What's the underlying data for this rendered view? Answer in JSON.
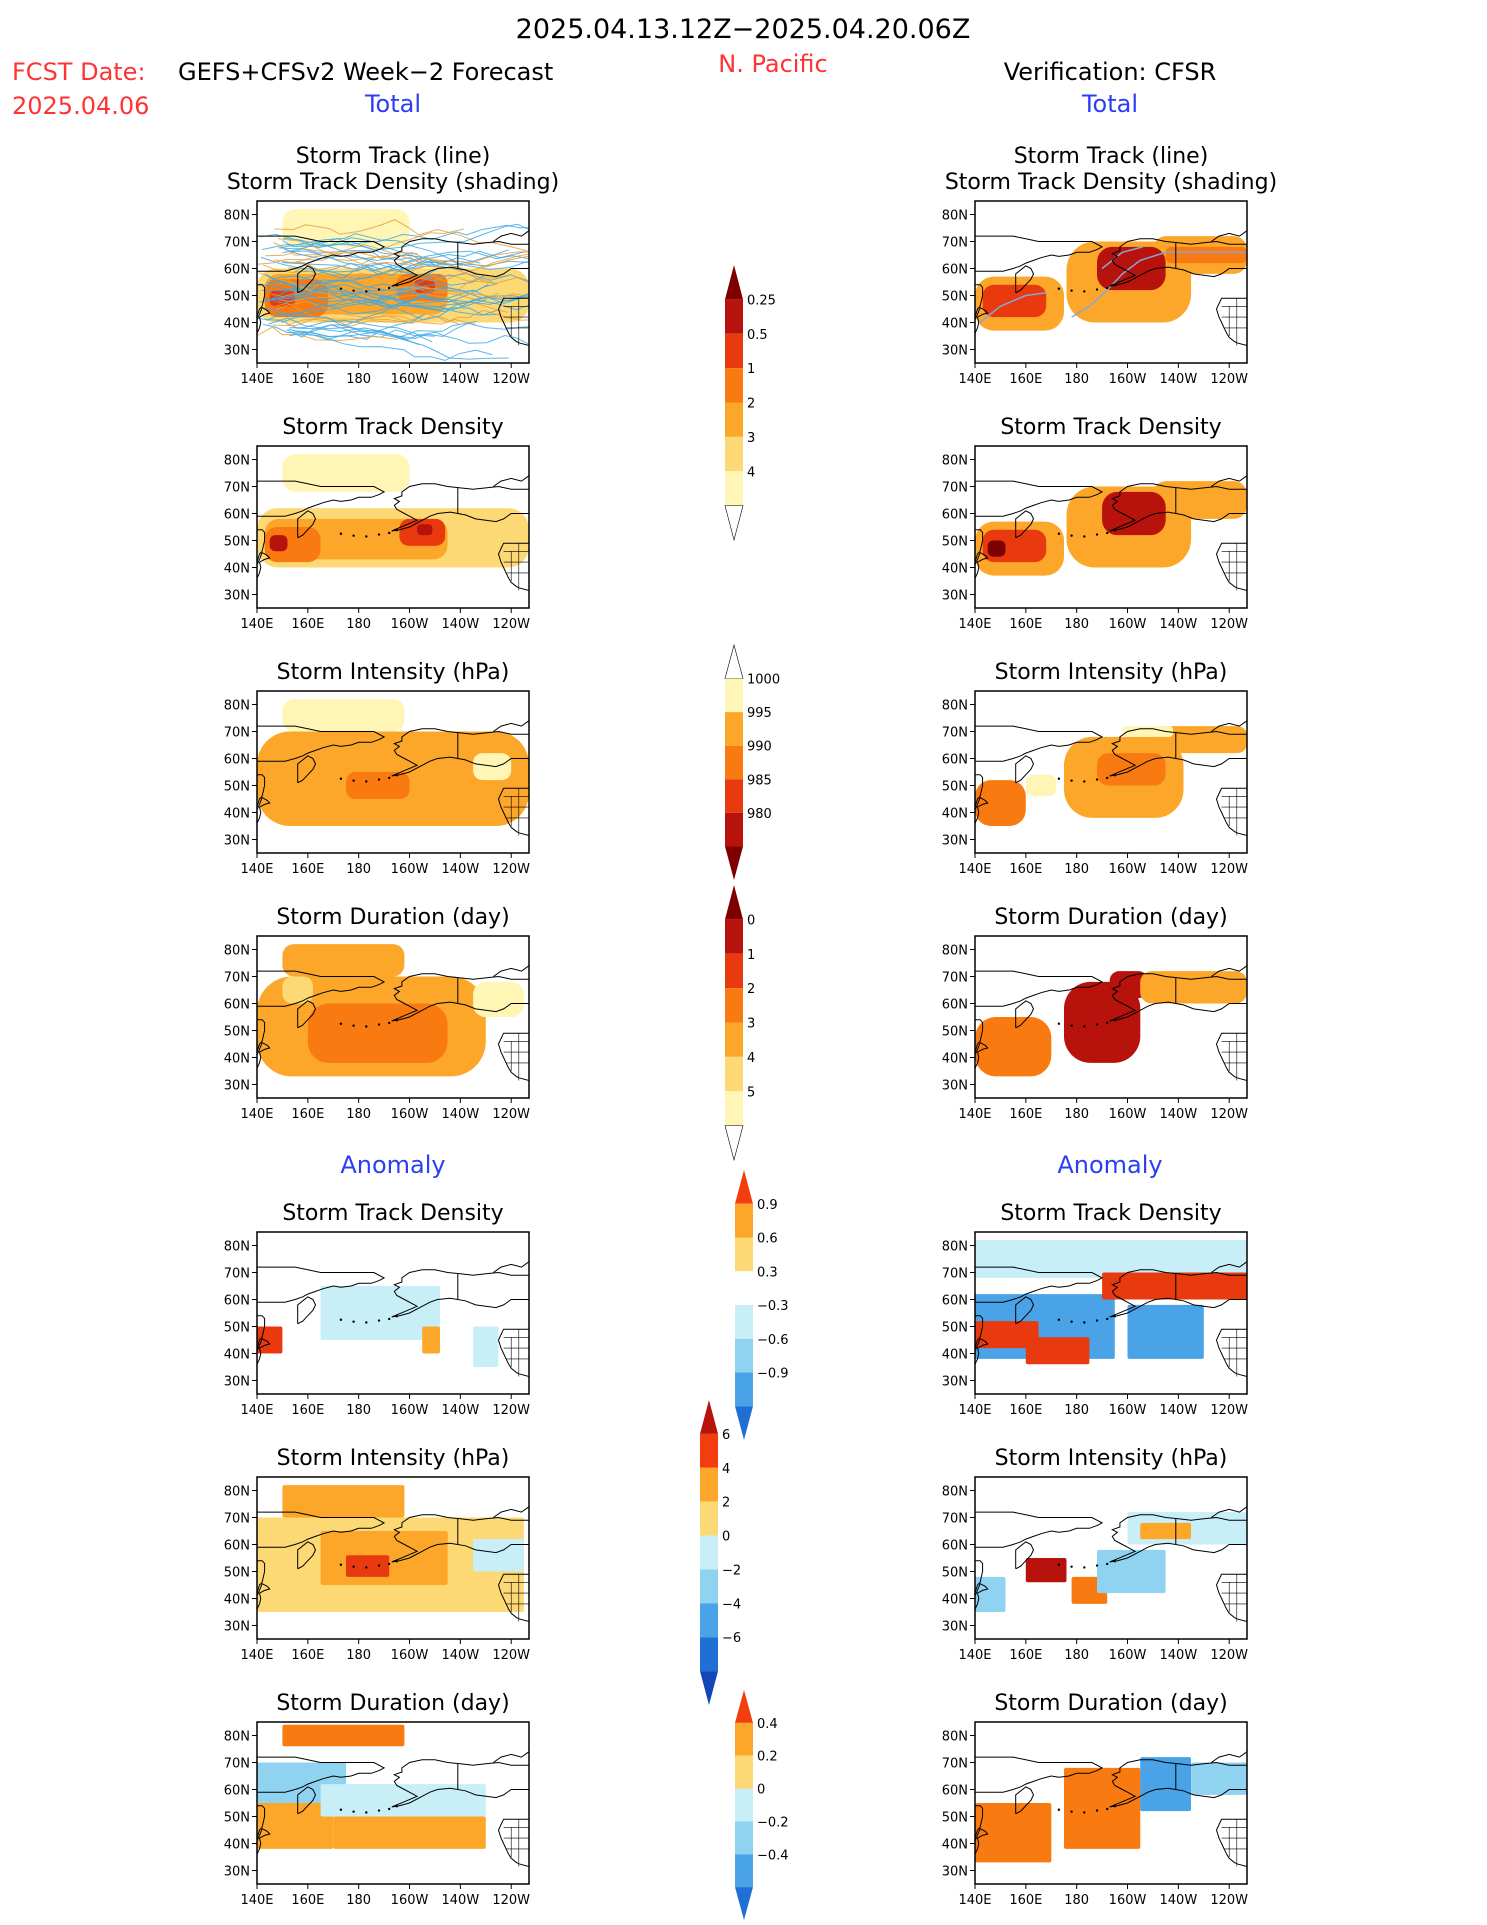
{
  "header": {
    "date_range": "2025.04.13.12Z−2025.04.20.06Z",
    "fcst_label": "FCST Date:",
    "fcst_date": "2025.04.06",
    "model": "GEFS+CFSv2 Week−2 Forecast",
    "region": "N. Pacific",
    "verification": "Verification: CFSR",
    "total_label": "Total",
    "anomaly_label": "Anomaly"
  },
  "axes": {
    "lon_ticks": [
      "140E",
      "160E",
      "180",
      "160W",
      "140W",
      "120W"
    ],
    "lat_ticks": [
      "80N",
      "70N",
      "60N",
      "50N",
      "40N",
      "30N"
    ],
    "lon_range": [
      140,
      247
    ],
    "lat_range": [
      25,
      85
    ]
  },
  "colors": {
    "warm": [
      "#fff5b5",
      "#fdd975",
      "#fca72a",
      "#f97a11",
      "#e83a0e",
      "#b7120b",
      "#7f0000"
    ],
    "cool": [
      "#c8eef8",
      "#8fd3f0",
      "#4aa3e6",
      "#1f6fd4",
      "#1446b8"
    ],
    "track_line": "#3ea9e6",
    "track_line_gold": "#e6a13c",
    "coast": "#000000"
  },
  "colorbars": [
    {
      "key": "density_total",
      "labels": [
        "0.25",
        "0.5",
        "1",
        "2",
        "3",
        "4"
      ]
    },
    {
      "key": "intensity_total",
      "labels": [
        "1000",
        "995",
        "990",
        "985",
        "980"
      ]
    },
    {
      "key": "duration_total",
      "labels": [
        "0",
        "1",
        "2",
        "3",
        "4",
        "5"
      ]
    },
    {
      "key": "density_anom",
      "labels": [
        "0.9",
        "0.6",
        "0.3",
        "−0.3",
        "−0.6",
        "−0.9"
      ]
    },
    {
      "key": "intensity_anom",
      "labels": [
        "6",
        "4",
        "2",
        "0",
        "−2",
        "−4",
        "−6"
      ]
    },
    {
      "key": "duration_anom",
      "labels": [
        "0.4",
        "0.2",
        "0",
        "−0.2",
        "−0.4"
      ]
    }
  ],
  "chart_data": [
    {
      "type": "heatmap",
      "section": "Total",
      "column": "GEFS+CFSv2 Week−2 Forecast",
      "title_lines": [
        "Storm Track (line)",
        "Storm Track Density (shading)"
      ],
      "scale": "warm",
      "units": "track density",
      "regions": [
        {
          "lon": [
            150,
            200
          ],
          "lat": [
            68,
            82
          ],
          "level": 0
        },
        {
          "lon": [
            140,
            247
          ],
          "lat": [
            40,
            60
          ],
          "level": 1
        },
        {
          "lon": [
            143,
            215
          ],
          "lat": [
            43,
            58
          ],
          "level": 2
        },
        {
          "lon": [
            143,
            168
          ],
          "lat": [
            42,
            56
          ],
          "level": 3
        },
        {
          "lon": [
            195,
            215
          ],
          "lat": [
            48,
            58
          ],
          "level": 3
        },
        {
          "lon": [
            145,
            155
          ],
          "lat": [
            46,
            52
          ],
          "level": 4
        },
        {
          "lon": [
            202,
            210
          ],
          "lat": [
            51,
            56
          ],
          "level": 4
        }
      ]
    },
    {
      "type": "heatmap",
      "section": "Total",
      "column": "Verification: CFSR",
      "title_lines": [
        "Storm Track (line)",
        "Storm Track Density (shading)"
      ],
      "scale": "warm",
      "units": "track density",
      "regions": [
        {
          "lon": [
            140,
            175
          ],
          "lat": [
            37,
            57
          ],
          "level": 2
        },
        {
          "lon": [
            176,
            225
          ],
          "lat": [
            40,
            70
          ],
          "level": 2
        },
        {
          "lon": [
            210,
            247
          ],
          "lat": [
            58,
            72
          ],
          "level": 2
        },
        {
          "lon": [
            143,
            168
          ],
          "lat": [
            42,
            54
          ],
          "level": 4
        },
        {
          "lon": [
            188,
            215
          ],
          "lat": [
            52,
            68
          ],
          "level": 5
        },
        {
          "lon": [
            215,
            247
          ],
          "lat": [
            62,
            68
          ],
          "level": 3
        }
      ]
    },
    {
      "type": "heatmap",
      "section": "Total",
      "column": "GEFS+CFSv2 Week−2 Forecast",
      "title_lines": [
        "Storm Track Density"
      ],
      "scale": "warm",
      "units": "track density",
      "regions": [
        {
          "lon": [
            150,
            200
          ],
          "lat": [
            68,
            82
          ],
          "level": 0
        },
        {
          "lon": [
            140,
            247
          ],
          "lat": [
            40,
            62
          ],
          "level": 1
        },
        {
          "lon": [
            143,
            215
          ],
          "lat": [
            43,
            58
          ],
          "level": 2
        },
        {
          "lon": [
            143,
            165
          ],
          "lat": [
            42,
            55
          ],
          "level": 3
        },
        {
          "lon": [
            196,
            214
          ],
          "lat": [
            48,
            58
          ],
          "level": 4
        },
        {
          "lon": [
            145,
            152
          ],
          "lat": [
            46,
            52
          ],
          "level": 5
        },
        {
          "lon": [
            203,
            209
          ],
          "lat": [
            52,
            56
          ],
          "level": 5
        }
      ]
    },
    {
      "type": "heatmap",
      "section": "Total",
      "column": "Verification: CFSR",
      "title_lines": [
        "Storm Track Density"
      ],
      "scale": "warm",
      "units": "track density",
      "regions": [
        {
          "lon": [
            140,
            175
          ],
          "lat": [
            37,
            57
          ],
          "level": 2
        },
        {
          "lon": [
            176,
            225
          ],
          "lat": [
            40,
            70
          ],
          "level": 2
        },
        {
          "lon": [
            210,
            247
          ],
          "lat": [
            58,
            72
          ],
          "level": 2
        },
        {
          "lon": [
            143,
            168
          ],
          "lat": [
            42,
            54
          ],
          "level": 4
        },
        {
          "lon": [
            190,
            215
          ],
          "lat": [
            52,
            68
          ],
          "level": 5
        },
        {
          "lon": [
            145,
            152
          ],
          "lat": [
            44,
            50
          ],
          "level": 6
        }
      ]
    },
    {
      "type": "heatmap",
      "section": "Total",
      "column": "GEFS+CFSv2 Week−2 Forecast",
      "title_lines": [
        "Storm Intensity (hPa)"
      ],
      "scale": "warm",
      "units": "hPa",
      "regions": [
        {
          "lon": [
            150,
            198
          ],
          "lat": [
            70,
            82
          ],
          "level": 0
        },
        {
          "lon": [
            140,
            247
          ],
          "lat": [
            35,
            70
          ],
          "level": 2
        },
        {
          "lon": [
            175,
            200
          ],
          "lat": [
            45,
            55
          ],
          "level": 3
        },
        {
          "lon": [
            225,
            240
          ],
          "lat": [
            52,
            62
          ],
          "level": 0
        }
      ]
    },
    {
      "type": "heatmap",
      "section": "Total",
      "column": "Verification: CFSR",
      "title_lines": [
        "Storm Intensity (hPa)"
      ],
      "scale": "warm",
      "units": "hPa",
      "regions": [
        {
          "lon": [
            140,
            160
          ],
          "lat": [
            35,
            52
          ],
          "level": 3
        },
        {
          "lon": [
            160,
            172
          ],
          "lat": [
            46,
            54
          ],
          "level": 0
        },
        {
          "lon": [
            175,
            222
          ],
          "lat": [
            38,
            68
          ],
          "level": 2
        },
        {
          "lon": [
            188,
            215
          ],
          "lat": [
            50,
            62
          ],
          "level": 3
        },
        {
          "lon": [
            210,
            247
          ],
          "lat": [
            62,
            72
          ],
          "level": 2
        },
        {
          "lon": [
            198,
            218
          ],
          "lat": [
            68,
            72
          ],
          "level": 0
        }
      ]
    },
    {
      "type": "heatmap",
      "section": "Total",
      "column": "GEFS+CFSv2 Week−2 Forecast",
      "title_lines": [
        "Storm Duration (day)"
      ],
      "scale": "warm",
      "units": "day",
      "regions": [
        {
          "lon": [
            150,
            198
          ],
          "lat": [
            70,
            82
          ],
          "level": 2
        },
        {
          "lon": [
            140,
            230
          ],
          "lat": [
            33,
            70
          ],
          "level": 2
        },
        {
          "lon": [
            150,
            162
          ],
          "lat": [
            60,
            70
          ],
          "level": 1
        },
        {
          "lon": [
            160,
            215
          ],
          "lat": [
            38,
            60
          ],
          "level": 3
        },
        {
          "lon": [
            225,
            245
          ],
          "lat": [
            55,
            68
          ],
          "level": 0
        }
      ]
    },
    {
      "type": "heatmap",
      "section": "Total",
      "column": "Verification: CFSR",
      "title_lines": [
        "Storm Duration (day)"
      ],
      "scale": "warm",
      "units": "day",
      "regions": [
        {
          "lon": [
            140,
            170
          ],
          "lat": [
            33,
            55
          ],
          "level": 3
        },
        {
          "lon": [
            175,
            205
          ],
          "lat": [
            38,
            68
          ],
          "level": 5
        },
        {
          "lon": [
            193,
            208
          ],
          "lat": [
            62,
            72
          ],
          "level": 5
        },
        {
          "lon": [
            205,
            247
          ],
          "lat": [
            60,
            72
          ],
          "level": 2
        }
      ]
    },
    {
      "type": "heatmap",
      "section": "Anomaly",
      "column": "GEFS+CFSv2 Week−2 Forecast",
      "title_lines": [
        "Storm Track Density"
      ],
      "scale": "diverging",
      "units": "track density anomaly",
      "regions": [
        {
          "lon": [
            140,
            150
          ],
          "lat": [
            40,
            50
          ],
          "level": 4
        },
        {
          "lon": [
            170,
            205
          ],
          "lat": [
            47,
            62
          ],
          "level": -3
        },
        {
          "lon": [
            165,
            212
          ],
          "lat": [
            45,
            65
          ],
          "level": -1
        },
        {
          "lon": [
            205,
            212
          ],
          "lat": [
            40,
            50
          ],
          "level": 2
        },
        {
          "lon": [
            225,
            235
          ],
          "lat": [
            35,
            50
          ],
          "level": -1
        }
      ]
    },
    {
      "type": "heatmap",
      "section": "Anomaly",
      "column": "Verification: CFSR",
      "title_lines": [
        "Storm Track Density"
      ],
      "scale": "diverging",
      "units": "track density anomaly",
      "regions": [
        {
          "lon": [
            140,
            247
          ],
          "lat": [
            68,
            82
          ],
          "level": -1
        },
        {
          "lon": [
            140,
            195
          ],
          "lat": [
            38,
            62
          ],
          "level": -3
        },
        {
          "lon": [
            140,
            165
          ],
          "lat": [
            42,
            52
          ],
          "level": 4
        },
        {
          "lon": [
            160,
            185
          ],
          "lat": [
            36,
            46
          ],
          "level": 4
        },
        {
          "lon": [
            190,
            247
          ],
          "lat": [
            60,
            70
          ],
          "level": 4
        },
        {
          "lon": [
            200,
            230
          ],
          "lat": [
            38,
            58
          ],
          "level": -3
        }
      ]
    },
    {
      "type": "heatmap",
      "section": "Anomaly",
      "column": "GEFS+CFSv2 Week−2 Forecast",
      "title_lines": [
        "Storm Intensity (hPa)"
      ],
      "scale": "diverging",
      "units": "hPa",
      "regions": [
        {
          "lon": [
            150,
            198
          ],
          "lat": [
            70,
            82
          ],
          "level": 2
        },
        {
          "lon": [
            140,
            245
          ],
          "lat": [
            35,
            70
          ],
          "level": 1
        },
        {
          "lon": [
            165,
            215
          ],
          "lat": [
            45,
            65
          ],
          "level": 2
        },
        {
          "lon": [
            175,
            192
          ],
          "lat": [
            48,
            56
          ],
          "level": 4
        },
        {
          "lon": [
            225,
            245
          ],
          "lat": [
            50,
            62
          ],
          "level": -1
        }
      ]
    },
    {
      "type": "heatmap",
      "section": "Anomaly",
      "column": "Verification: CFSR",
      "title_lines": [
        "Storm Intensity (hPa)"
      ],
      "scale": "diverging",
      "units": "hPa",
      "regions": [
        {
          "lon": [
            140,
            152
          ],
          "lat": [
            35,
            48
          ],
          "level": -2
        },
        {
          "lon": [
            160,
            176
          ],
          "lat": [
            46,
            55
          ],
          "level": 5
        },
        {
          "lon": [
            178,
            192
          ],
          "lat": [
            38,
            48
          ],
          "level": 3
        },
        {
          "lon": [
            188,
            215
          ],
          "lat": [
            42,
            58
          ],
          "level": -2
        },
        {
          "lon": [
            200,
            247
          ],
          "lat": [
            60,
            72
          ],
          "level": -1
        },
        {
          "lon": [
            205,
            225
          ],
          "lat": [
            62,
            68
          ],
          "level": 2
        }
      ]
    },
    {
      "type": "heatmap",
      "section": "Anomaly",
      "column": "GEFS+CFSv2 Week−2 Forecast",
      "title_lines": [
        "Storm Duration (day)"
      ],
      "scale": "diverging",
      "units": "day",
      "regions": [
        {
          "lon": [
            150,
            198
          ],
          "lat": [
            76,
            84
          ],
          "level": 3
        },
        {
          "lon": [
            140,
            175
          ],
          "lat": [
            55,
            70
          ],
          "level": -2
        },
        {
          "lon": [
            140,
            170
          ],
          "lat": [
            38,
            55
          ],
          "level": 2
        },
        {
          "lon": [
            170,
            230
          ],
          "lat": [
            38,
            50
          ],
          "level": 2
        },
        {
          "lon": [
            165,
            230
          ],
          "lat": [
            50,
            62
          ],
          "level": -1
        }
      ]
    },
    {
      "type": "heatmap",
      "section": "Anomaly",
      "column": "Verification: CFSR",
      "title_lines": [
        "Storm Duration (day)"
      ],
      "scale": "diverging",
      "units": "day",
      "regions": [
        {
          "lon": [
            140,
            170
          ],
          "lat": [
            33,
            55
          ],
          "level": 3
        },
        {
          "lon": [
            175,
            205
          ],
          "lat": [
            38,
            68
          ],
          "level": 3
        },
        {
          "lon": [
            205,
            225
          ],
          "lat": [
            52,
            72
          ],
          "level": -3
        },
        {
          "lon": [
            225,
            247
          ],
          "lat": [
            58,
            70
          ],
          "level": -2
        }
      ]
    }
  ]
}
